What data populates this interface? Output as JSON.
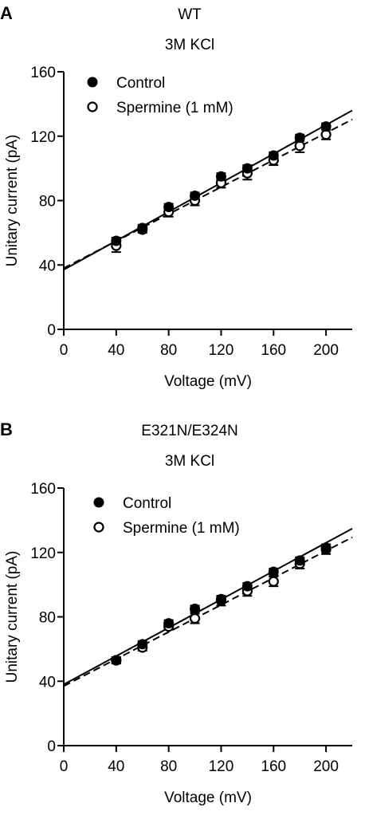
{
  "chart_data": [
    {
      "type": "scatter",
      "panel_label": "A",
      "title": "WT",
      "subtitle": "3M KCl",
      "xlabel": "Voltage (mV)",
      "ylabel": "Unitary current (pA)",
      "xlim": [
        0,
        220
      ],
      "ylim": [
        0,
        160
      ],
      "xticks": [
        0,
        40,
        80,
        120,
        160,
        200
      ],
      "yticks": [
        0,
        40,
        80,
        120,
        160
      ],
      "grid": false,
      "legend_position": "top-left",
      "series": [
        {
          "name": "Control",
          "marker": "filled-circle",
          "line_style": "solid",
          "x": [
            40,
            60,
            80,
            100,
            120,
            140,
            160,
            180,
            200
          ],
          "y": [
            55,
            63,
            76,
            83,
            95,
            100,
            108,
            119,
            126
          ],
          "err": [
            2,
            2,
            2,
            2,
            2,
            2,
            2,
            2,
            2
          ],
          "fit": {
            "intercept": 37,
            "slope": 0.45
          }
        },
        {
          "name": "Spermine (1 mM)",
          "marker": "open-circle",
          "line_style": "dashed",
          "x": [
            40,
            60,
            80,
            100,
            120,
            140,
            160,
            180,
            200
          ],
          "y": [
            52,
            62,
            73,
            80,
            91,
            97,
            105,
            114,
            121
          ],
          "err": [
            4,
            2,
            3,
            3,
            3,
            4,
            3,
            4,
            3
          ],
          "fit": {
            "intercept": 38,
            "slope": 0.42
          }
        }
      ]
    },
    {
      "type": "scatter",
      "panel_label": "B",
      "title": "E321N/E324N",
      "subtitle": "3M KCl",
      "xlabel": "Voltage (mV)",
      "ylabel": "Unitary current (pA)",
      "xlim": [
        0,
        220
      ],
      "ylim": [
        0,
        160
      ],
      "xticks": [
        0,
        40,
        80,
        120,
        160,
        200
      ],
      "yticks": [
        0,
        40,
        80,
        120,
        160
      ],
      "grid": false,
      "legend_position": "top-left",
      "series": [
        {
          "name": "Control",
          "marker": "filled-circle",
          "line_style": "solid",
          "x": [
            40,
            60,
            80,
            100,
            120,
            140,
            160,
            180,
            200
          ],
          "y": [
            53,
            63,
            76,
            85,
            91,
            99,
            108,
            115,
            123
          ],
          "err": [
            2,
            2,
            2,
            2,
            2,
            2,
            2,
            2,
            2
          ],
          "fit": {
            "intercept": 38,
            "slope": 0.44
          }
        },
        {
          "name": "Spermine (1 mM)",
          "marker": "open-circle",
          "line_style": "dashed",
          "x": [
            40,
            60,
            80,
            100,
            120,
            140,
            160,
            180,
            200
          ],
          "y": [
            53,
            61,
            74,
            79,
            90,
            96,
            102,
            113,
            122
          ],
          "err": [
            2,
            2,
            2,
            3,
            3,
            3,
            3,
            3,
            3
          ],
          "fit": {
            "intercept": 37,
            "slope": 0.42
          }
        }
      ]
    }
  ]
}
